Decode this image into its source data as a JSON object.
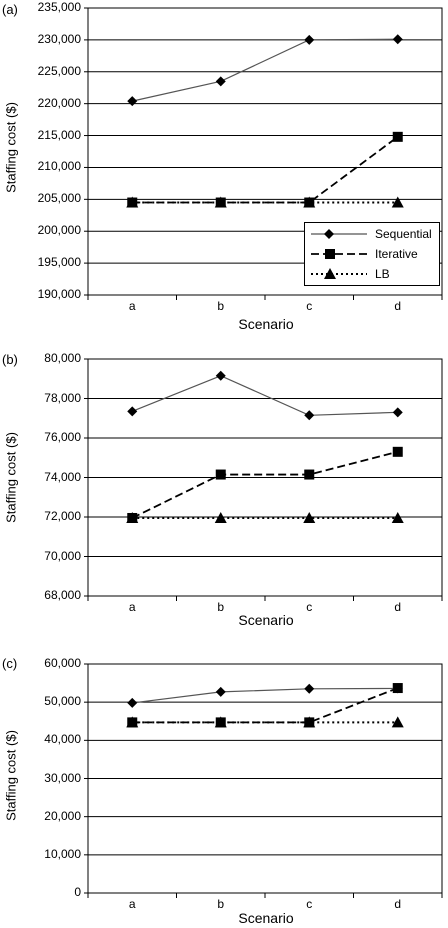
{
  "chart_data": [
    {
      "type": "line",
      "panel_label": "(a)",
      "categories": [
        "a",
        "b",
        "c",
        "d"
      ],
      "xlabel": "Scenario",
      "ylabel": "Staffing cost ($)",
      "ylim": [
        190000,
        235000
      ],
      "yticks": [
        "190,000",
        "195,000",
        "200,000",
        "205,000",
        "210,000",
        "215,000",
        "220,000",
        "225,000",
        "230,000",
        "235,000"
      ],
      "ytick_values": [
        190000,
        195000,
        200000,
        205000,
        210000,
        215000,
        220000,
        225000,
        230000,
        235000
      ],
      "grid": true,
      "legend_position": "bottom-right",
      "series": [
        {
          "name": "Sequential",
          "values": [
            220400,
            223500,
            230000,
            230100
          ]
        },
        {
          "name": "Iterative",
          "values": [
            204500,
            204500,
            204500,
            214800
          ]
        },
        {
          "name": "LB",
          "values": [
            204500,
            204500,
            204500,
            204500
          ]
        }
      ]
    },
    {
      "type": "line",
      "panel_label": "(b)",
      "categories": [
        "a",
        "b",
        "c",
        "d"
      ],
      "xlabel": "Scenario",
      "ylabel": "Staffing cost ($)",
      "ylim": [
        68000,
        80000
      ],
      "yticks": [
        "68,000",
        "70,000",
        "72,000",
        "74,000",
        "76,000",
        "78,000",
        "80,000"
      ],
      "ytick_values": [
        68000,
        70000,
        72000,
        74000,
        76000,
        78000,
        80000
      ],
      "grid": true,
      "series": [
        {
          "name": "Sequential",
          "values": [
            77350,
            79150,
            77150,
            77300
          ]
        },
        {
          "name": "Iterative",
          "values": [
            71950,
            74150,
            74150,
            75300
          ]
        },
        {
          "name": "LB",
          "values": [
            71950,
            71950,
            71950,
            71950
          ]
        }
      ]
    },
    {
      "type": "line",
      "panel_label": "(c)",
      "categories": [
        "a",
        "b",
        "c",
        "d"
      ],
      "xlabel": "Scenario",
      "ylabel": "Staffing cost ($)",
      "ylim": [
        0,
        60000
      ],
      "yticks": [
        "0",
        "10,000",
        "20,000",
        "30,000",
        "40,000",
        "50,000",
        "60,000"
      ],
      "ytick_values": [
        0,
        10000,
        20000,
        30000,
        40000,
        50000,
        60000
      ],
      "grid": true,
      "series": [
        {
          "name": "Sequential",
          "values": [
            49800,
            52700,
            53500,
            53600
          ]
        },
        {
          "name": "Iterative",
          "values": [
            44700,
            44700,
            44700,
            53700
          ]
        },
        {
          "name": "LB",
          "values": [
            44700,
            44700,
            44700,
            44700
          ]
        }
      ]
    }
  ]
}
